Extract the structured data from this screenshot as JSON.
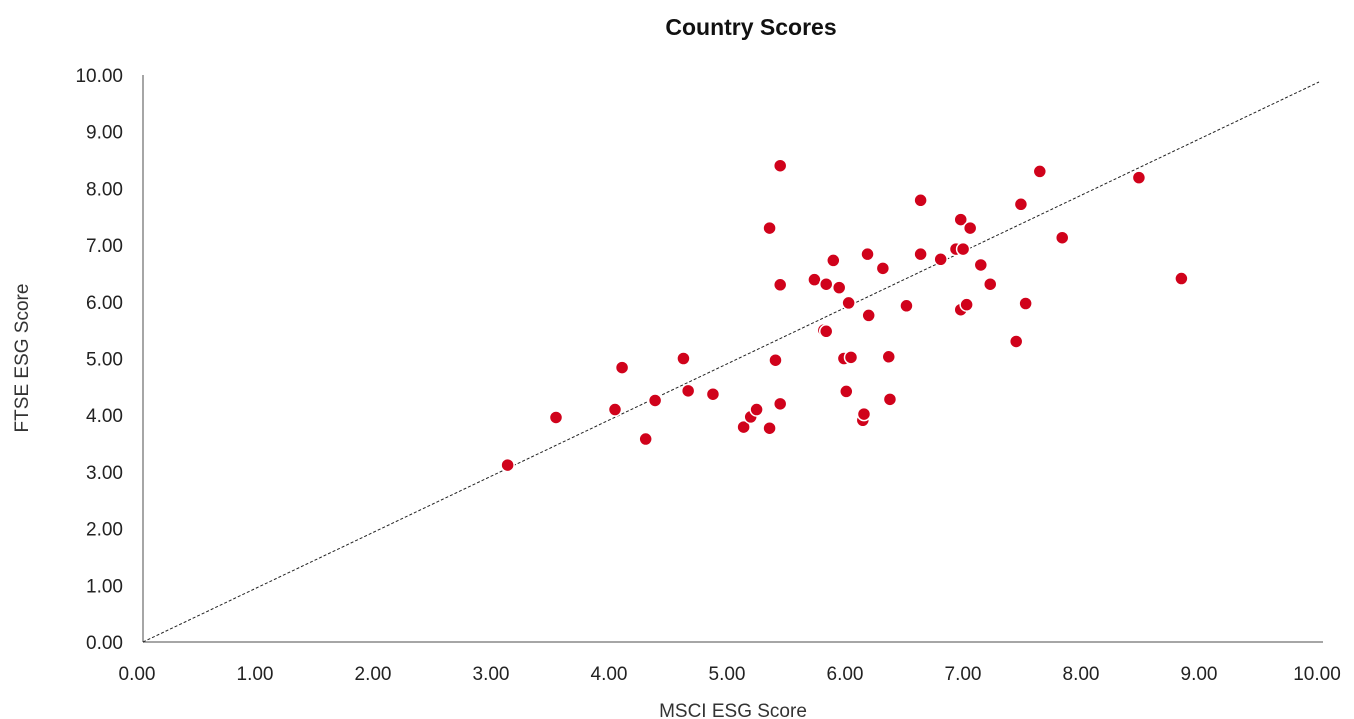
{
  "chart_data": {
    "type": "scatter",
    "title": "Country Scores",
    "xlabel": "MSCI ESG Score",
    "ylabel": "FTSE ESG Score",
    "xlim": [
      0,
      10
    ],
    "ylim": [
      0,
      10
    ],
    "xticks": [
      "0.00",
      "1.00",
      "2.00",
      "3.00",
      "4.00",
      "5.00",
      "6.00",
      "7.00",
      "8.00",
      "9.00",
      "10.00"
    ],
    "yticks": [
      "0.00",
      "1.00",
      "2.00",
      "3.00",
      "4.00",
      "5.00",
      "6.00",
      "7.00",
      "8.00",
      "9.00",
      "10.00"
    ],
    "grid": false,
    "reference_line": {
      "style": "dashed",
      "from": [
        0,
        0
      ],
      "to": [
        10,
        10
      ],
      "color": "#222222"
    },
    "marker_color": "#d0021b",
    "points": [
      [
        3.09,
        3.12
      ],
      [
        3.5,
        3.96
      ],
      [
        4.0,
        4.1
      ],
      [
        4.06,
        4.84
      ],
      [
        4.26,
        3.58
      ],
      [
        4.34,
        4.26
      ],
      [
        4.58,
        5.0
      ],
      [
        4.62,
        4.43
      ],
      [
        4.83,
        4.37
      ],
      [
        5.09,
        3.79
      ],
      [
        5.15,
        3.97
      ],
      [
        5.2,
        4.1
      ],
      [
        5.31,
        3.77
      ],
      [
        5.31,
        7.3
      ],
      [
        5.36,
        4.97
      ],
      [
        5.4,
        4.2
      ],
      [
        5.4,
        6.3
      ],
      [
        5.4,
        8.4
      ],
      [
        5.69,
        6.39
      ],
      [
        5.77,
        5.5
      ],
      [
        5.79,
        5.48
      ],
      [
        5.79,
        6.31
      ],
      [
        5.85,
        6.73
      ],
      [
        5.9,
        6.25
      ],
      [
        5.94,
        5.0
      ],
      [
        5.96,
        4.42
      ],
      [
        5.98,
        5.98
      ],
      [
        6.0,
        5.02
      ],
      [
        6.1,
        3.91
      ],
      [
        6.11,
        4.02
      ],
      [
        6.14,
        6.84
      ],
      [
        6.15,
        5.76
      ],
      [
        6.27,
        6.59
      ],
      [
        6.32,
        5.03
      ],
      [
        6.33,
        4.28
      ],
      [
        6.47,
        5.93
      ],
      [
        6.59,
        7.79
      ],
      [
        6.59,
        6.84
      ],
      [
        6.76,
        6.75
      ],
      [
        6.89,
        6.93
      ],
      [
        6.93,
        7.45
      ],
      [
        6.95,
        6.93
      ],
      [
        6.93,
        5.86
      ],
      [
        6.98,
        5.95
      ],
      [
        7.01,
        7.3
      ],
      [
        7.1,
        6.65
      ],
      [
        7.18,
        6.31
      ],
      [
        7.4,
        5.3
      ],
      [
        7.44,
        7.72
      ],
      [
        7.48,
        5.97
      ],
      [
        7.6,
        8.3
      ],
      [
        7.79,
        7.13
      ],
      [
        8.44,
        8.19
      ],
      [
        8.8,
        6.41
      ]
    ]
  }
}
